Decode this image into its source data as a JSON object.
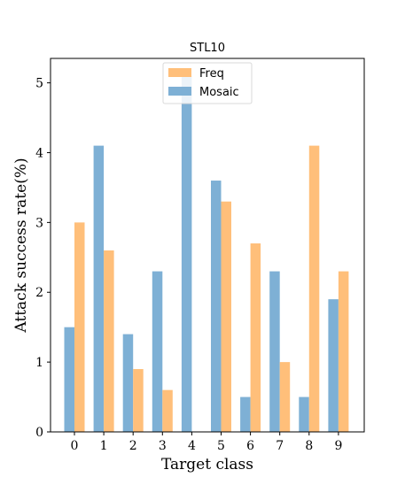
{
  "chart_data": {
    "type": "bar",
    "title": "STL10",
    "xlabel": "Target class",
    "ylabel": "Attack success rate(%)",
    "categories": [
      "0",
      "1",
      "2",
      "3",
      "4",
      "5",
      "6",
      "7",
      "8",
      "9"
    ],
    "series": [
      {
        "name": "Mosaic",
        "color": "#7eb0d5",
        "values": [
          1.5,
          4.1,
          1.4,
          2.3,
          5.1,
          3.6,
          0.5,
          2.3,
          0.5,
          1.9
        ]
      },
      {
        "name": "Freq",
        "color": "#ffbf7a",
        "values": [
          3.0,
          2.6,
          0.9,
          0.6,
          0.0,
          3.3,
          2.7,
          1.0,
          4.1,
          2.3
        ]
      }
    ],
    "ylim": [
      0,
      5.35
    ],
    "yticks": [
      0,
      1,
      2,
      3,
      4,
      5
    ],
    "legend": {
      "position": "upper-center",
      "entries": [
        "Freq",
        "Mosaic"
      ]
    },
    "grid": false
  }
}
